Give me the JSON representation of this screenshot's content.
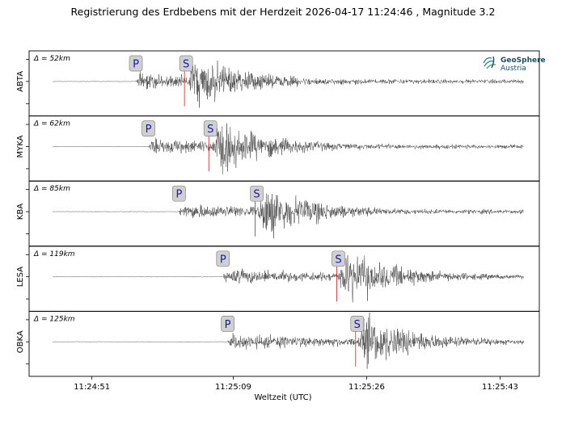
{
  "chart_data": {
    "type": "line",
    "title": "Registrierung des Erdbebens mit der Herdzeit 2026-04-17 11:24:46 , Magnitude 3.2",
    "xlabel": "Weltzeit (UTC)",
    "x_ticks": [
      "11:24:51",
      "11:25:09",
      "11:25:26",
      "11:25:43"
    ],
    "x_tick_seconds": [
      5,
      23,
      40,
      57
    ],
    "x_range_seconds": [
      -3,
      62
    ],
    "trace_range_seconds": [
      0,
      60
    ],
    "grid": false,
    "logo": {
      "name": "GeoSphere",
      "sub": "Austria",
      "icon": "geosphere-logo-icon"
    },
    "series": [
      {
        "name": "ABTA",
        "distance_label": "Δ = 52km",
        "p_pick_s": 10.6,
        "s_pick_s": 17.0,
        "amplitude": 1.0
      },
      {
        "name": "MYKA",
        "distance_label": "Δ = 62km",
        "p_pick_s": 12.2,
        "s_pick_s": 20.1,
        "amplitude": 1.0
      },
      {
        "name": "KBA",
        "distance_label": "Δ = 85km",
        "p_pick_s": 16.1,
        "s_pick_s": 26.0,
        "amplitude": 1.0
      },
      {
        "name": "LESA",
        "distance_label": "Δ = 119km",
        "p_pick_s": 21.7,
        "s_pick_s": 36.4,
        "amplitude": 1.0
      },
      {
        "name": "OBKA",
        "distance_label": "Δ = 125km",
        "p_pick_s": 22.3,
        "s_pick_s": 38.8,
        "amplitude": 1.0
      }
    ],
    "pick_labels": {
      "p": "P",
      "s": "S"
    },
    "colors": {
      "trace": "#333333",
      "pick_line": "#e03030",
      "pick_box": "#d0d0d0",
      "pick_text": "#1a1aa6"
    }
  }
}
